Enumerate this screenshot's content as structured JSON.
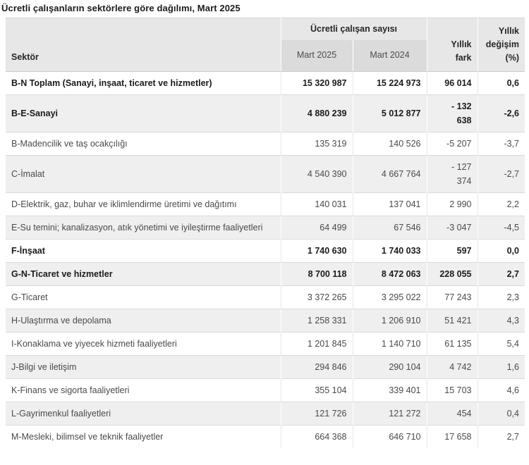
{
  "title": "Ücretli çalışanların sektörlere göre dağılımı, Mart 2025",
  "colors": {
    "header_bg": "#e7e7e7",
    "subheader_bg": "#dbdbdb",
    "zebra_row_bg": "#efefef",
    "row_bg": "#ffffff",
    "border": "#d9d9d9",
    "text_regular": "#4a4a4a",
    "text_bold": "#1b1b1b"
  },
  "table": {
    "headers": {
      "sector": "Sektör",
      "group": "Ücretli çalışan sayısı",
      "sub_mart_2025": "Mart 2025",
      "sub_mart_2024": "Mart 2024",
      "yillik_fark": "Yıllık\nfark",
      "yillik_degisim": "Yıllık\ndeğişim\n(%)"
    },
    "rows": [
      {
        "label": "B-N Toplam (Sanayi, inşaat, ticaret ve hizmetler)",
        "bold": true,
        "mart_2025": "15 320 987",
        "mart_2024": "15 224 973",
        "yillik_fark": "96 014",
        "yillik_degisim": "0,6"
      },
      {
        "label": "B-E-Sanayi",
        "bold": true,
        "mart_2025": "4 880 239",
        "mart_2024": "5 012 877",
        "yillik_fark": "- 132\n638",
        "yillik_degisim": "-2,6"
      },
      {
        "label": "B-Madencilik ve taş ocakçılığı",
        "bold": false,
        "mart_2025": "135 319",
        "mart_2024": "140 526",
        "yillik_fark": "-5 207",
        "yillik_degisim": "-3,7"
      },
      {
        "label": "C-İmalat",
        "bold": false,
        "mart_2025": "4 540 390",
        "mart_2024": "4 667 764",
        "yillik_fark": "- 127\n374",
        "yillik_degisim": "-2,7"
      },
      {
        "label": "D-Elektrik, gaz, buhar ve iklimlendirme üretimi ve dağıtımı",
        "bold": false,
        "mart_2025": "140 031",
        "mart_2024": "137 041",
        "yillik_fark": "2 990",
        "yillik_degisim": "2,2"
      },
      {
        "label": "E-Su temini; kanalizasyon, atık yönetimi ve iyileştirme faaliyetleri",
        "bold": false,
        "mart_2025": "64 499",
        "mart_2024": "67 546",
        "yillik_fark": "-3 047",
        "yillik_degisim": "-4,5"
      },
      {
        "label": "F-İnşaat",
        "bold": true,
        "mart_2025": "1 740 630",
        "mart_2024": "1 740 033",
        "yillik_fark": "597",
        "yillik_degisim": "0,0"
      },
      {
        "label": "G-N-Ticaret ve hizmetler",
        "bold": true,
        "mart_2025": "8 700 118",
        "mart_2024": "8 472 063",
        "yillik_fark": "228 055",
        "yillik_degisim": "2,7"
      },
      {
        "label": "G-Ticaret",
        "bold": false,
        "mart_2025": "3 372 265",
        "mart_2024": "3 295 022",
        "yillik_fark": "77 243",
        "yillik_degisim": "2,3"
      },
      {
        "label": "H-Ulaştırma ve depolama",
        "bold": false,
        "mart_2025": "1 258 331",
        "mart_2024": "1 206 910",
        "yillik_fark": "51 421",
        "yillik_degisim": "4,3"
      },
      {
        "label": "I-Konaklama ve yiyecek hizmeti faaliyetleri",
        "bold": false,
        "mart_2025": "1 201 845",
        "mart_2024": "1 140 710",
        "yillik_fark": "61 135",
        "yillik_degisim": "5,4"
      },
      {
        "label": "J-Bilgi ve iletişim",
        "bold": false,
        "mart_2025": "294 846",
        "mart_2024": "290 104",
        "yillik_fark": "4 742",
        "yillik_degisim": "1,6"
      },
      {
        "label": "K-Finans ve sigorta faaliyetleri",
        "bold": false,
        "mart_2025": "355 104",
        "mart_2024": "339 401",
        "yillik_fark": "15 703",
        "yillik_degisim": "4,6"
      },
      {
        "label": "L-Gayrimenkul faaliyetleri",
        "bold": false,
        "mart_2025": "121 726",
        "mart_2024": "121 272",
        "yillik_fark": "454",
        "yillik_degisim": "0,4"
      },
      {
        "label": "M-Mesleki, bilimsel ve teknik faaliyetler",
        "bold": false,
        "mart_2025": "664 368",
        "mart_2024": "646 710",
        "yillik_fark": "17 658",
        "yillik_degisim": "2,7"
      }
    ]
  }
}
